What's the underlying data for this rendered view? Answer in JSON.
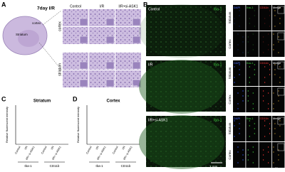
{
  "panel_a": {
    "label": "A",
    "time_label": "7day I/R",
    "brain_labels": [
      "cortex",
      "Striatum"
    ],
    "column_headers": [
      "Control",
      "I/R",
      "I/R+si-ASK1"
    ],
    "row_labels": [
      "cortex",
      "striatum"
    ],
    "scale_bar": "50um"
  },
  "panel_b": {
    "label": "B",
    "groups": [
      {
        "name": "Control",
        "marker": "Iba-1"
      },
      {
        "name": "I/R",
        "marker": "Iba-1"
      },
      {
        "name": "I/R+si-ASK1",
        "marker": "Iba-1"
      }
    ],
    "column_headers": [
      "DAPI",
      "Iba-1",
      "CD11b",
      "Merge"
    ],
    "row_labels": [
      "Striatum",
      "Cortex"
    ],
    "scale_bar": "1 mm",
    "inset_scale_bar": "50um"
  },
  "panel_c": {
    "label": "C",
    "title": "Striatum",
    "y_label": "Relative fluorescent intensity",
    "x_labels": [
      "Control",
      "I/R",
      "I/R+ si-ASK1"
    ],
    "groups": [
      "Iba-1",
      "CD11b"
    ]
  },
  "panel_d": {
    "label": "D",
    "title": "Cortex",
    "y_label": "Relative fluorescent intensity",
    "x_labels": [
      "Control",
      "I/R",
      "I/R+ si-ASK1"
    ],
    "groups": [
      "Iba-1",
      "CD11b"
    ]
  }
}
